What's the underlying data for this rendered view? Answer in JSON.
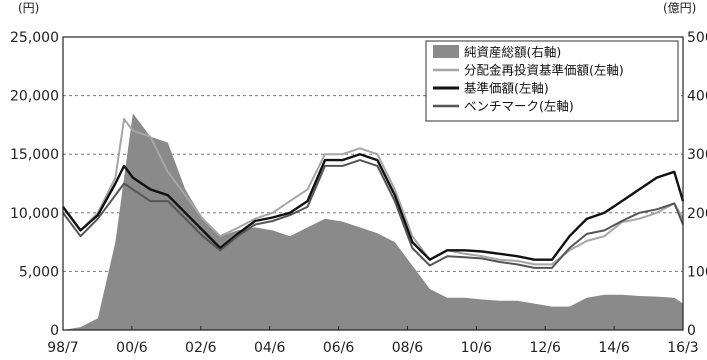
{
  "chart_data": {
    "type": "line",
    "left_unit": "(円)",
    "right_unit": "(億円)",
    "left_ylim": [
      0,
      25000
    ],
    "right_ylim": [
      0,
      500
    ],
    "left_ticks": [
      "0",
      "5,000",
      "10,000",
      "15,000",
      "20,000",
      "25,000"
    ],
    "right_ticks": [
      "0",
      "100",
      "200",
      "300",
      "400",
      "500"
    ],
    "x_ticks": [
      "98/7",
      "00/6",
      "02/6",
      "04/6",
      "06/6",
      "08/6",
      "10/6",
      "12/6",
      "14/6",
      "16/3"
    ],
    "grid": "horizontal-dashed",
    "legend_position": "top-right",
    "x": [
      1998.5,
      1999.0,
      1999.5,
      2000.0,
      2000.25,
      2000.5,
      2001.0,
      2001.5,
      2002.0,
      2002.5,
      2003.0,
      2003.5,
      2004.0,
      2004.5,
      2005.0,
      2005.5,
      2006.0,
      2006.5,
      2007.0,
      2007.5,
      2008.0,
      2008.5,
      2009.0,
      2009.5,
      2010.0,
      2010.5,
      2011.0,
      2011.5,
      2012.0,
      2012.5,
      2013.0,
      2013.5,
      2014.0,
      2014.5,
      2015.0,
      2015.5,
      2016.0,
      2016.25
    ],
    "series": [
      {
        "name": "純資産総額(右軸)",
        "axis": "right",
        "style": "area",
        "color": "#8a8a8a",
        "values": [
          0,
          5,
          20,
          150,
          260,
          370,
          330,
          320,
          240,
          190,
          160,
          170,
          175,
          170,
          160,
          175,
          190,
          185,
          175,
          165,
          150,
          110,
          70,
          55,
          55,
          52,
          50,
          50,
          45,
          40,
          40,
          55,
          60,
          60,
          58,
          57,
          55,
          45
        ]
      },
      {
        "name": "分配金再投資基準価額(左軸)",
        "axis": "left",
        "style": "line",
        "color": "#a6a6a6",
        "values": [
          10500,
          8500,
          10000,
          13000,
          18000,
          17000,
          16500,
          13500,
          11500,
          9500,
          8000,
          8700,
          9500,
          10000,
          11000,
          12000,
          15000,
          15000,
          15500,
          15000,
          12000,
          8000,
          6000,
          6800,
          6500,
          6300,
          6000,
          5900,
          5600,
          5600,
          6800,
          7600,
          8000,
          9200,
          9500,
          10000,
          10800,
          9500
        ]
      },
      {
        "name": "基準価額(左軸)",
        "axis": "left",
        "style": "line",
        "color": "#111111",
        "values": [
          10500,
          8500,
          9800,
          12500,
          14000,
          13000,
          12000,
          11500,
          10000,
          8500,
          7000,
          8200,
          9300,
          9600,
          10000,
          11000,
          14500,
          14500,
          15000,
          14500,
          11500,
          7500,
          6000,
          6800,
          6800,
          6700,
          6500,
          6300,
          6000,
          6000,
          8000,
          9500,
          10000,
          11000,
          12000,
          13000,
          13500,
          11000
        ]
      },
      {
        "name": "ベンチマーク(左軸)",
        "axis": "left",
        "style": "line",
        "color": "#555555",
        "values": [
          10000,
          8000,
          9500,
          11500,
          12500,
          12000,
          11000,
          11000,
          9500,
          8000,
          6800,
          8000,
          9000,
          9300,
          9800,
          10500,
          14000,
          14000,
          14500,
          14000,
          11000,
          7000,
          5500,
          6300,
          6200,
          6100,
          5800,
          5600,
          5300,
          5300,
          7000,
          8200,
          8500,
          9300,
          10000,
          10300,
          10800,
          9000
        ]
      }
    ]
  }
}
